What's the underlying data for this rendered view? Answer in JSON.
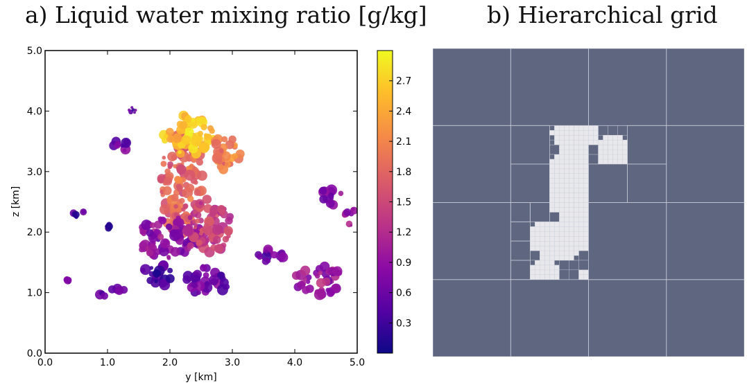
{
  "titles": {
    "left": "a) Liquid water mixing ratio [g/kg]",
    "right": "b) Hierarchical grid"
  },
  "chart_data": [
    {
      "type": "heatmap",
      "title": "a) Liquid water mixing ratio [g/kg]",
      "xlabel": "y [km]",
      "ylabel": "z [km]",
      "xlim": [
        0.0,
        5.0
      ],
      "ylim": [
        0.0,
        5.0
      ],
      "xticks": [
        "0.0",
        "1.0",
        "2.0",
        "3.0",
        "4.0",
        "5.0"
      ],
      "yticks": [
        "0.0",
        "1.0",
        "2.0",
        "3.0",
        "4.0",
        "5.0"
      ],
      "colorbar": {
        "ticks": [
          "0.3",
          "0.6",
          "0.9",
          "1.2",
          "1.5",
          "1.8",
          "2.1",
          "2.4",
          "2.7"
        ],
        "range": [
          0.0,
          3.0
        ],
        "colors": [
          "#0d0887",
          "#5402a3",
          "#8b0aa5",
          "#b93289",
          "#db5c68",
          "#f48849",
          "#febd2a",
          "#f0f921"
        ]
      },
      "background": "#ffffff",
      "cloud_regions": [
        {
          "y": 2.2,
          "z": 2.8,
          "ry": 0.35,
          "rz": 0.9,
          "value": 1.8
        },
        {
          "y": 2.3,
          "z": 3.6,
          "ry": 0.4,
          "rz": 0.35,
          "value": 2.6
        },
        {
          "y": 2.0,
          "z": 1.9,
          "ry": 0.55,
          "rz": 0.35,
          "value": 0.9
        },
        {
          "y": 2.6,
          "z": 2.1,
          "ry": 0.4,
          "rz": 0.45,
          "value": 1.4
        },
        {
          "y": 2.9,
          "z": 3.3,
          "ry": 0.25,
          "rz": 0.3,
          "value": 2.0
        },
        {
          "y": 1.2,
          "z": 3.4,
          "ry": 0.18,
          "rz": 0.12,
          "value": 0.6
        },
        {
          "y": 1.4,
          "z": 4.0,
          "ry": 0.06,
          "rz": 0.06,
          "value": 0.5
        },
        {
          "y": 1.8,
          "z": 1.3,
          "ry": 0.25,
          "rz": 0.2,
          "value": 0.4
        },
        {
          "y": 2.6,
          "z": 1.2,
          "ry": 0.35,
          "rz": 0.25,
          "value": 0.6
        },
        {
          "y": 1.1,
          "z": 1.0,
          "ry": 0.25,
          "rz": 0.08,
          "value": 0.5
        },
        {
          "y": 3.6,
          "z": 1.6,
          "ry": 0.25,
          "rz": 0.12,
          "value": 0.7
        },
        {
          "y": 4.4,
          "z": 1.2,
          "ry": 0.4,
          "rz": 0.25,
          "value": 1.0
        },
        {
          "y": 4.6,
          "z": 2.6,
          "ry": 0.2,
          "rz": 0.15,
          "value": 0.8
        },
        {
          "y": 4.9,
          "z": 2.3,
          "ry": 0.1,
          "rz": 0.2,
          "value": 1.0
        },
        {
          "y": 0.35,
          "z": 1.2,
          "ry": 0.06,
          "rz": 0.04,
          "value": 0.7
        },
        {
          "y": 0.55,
          "z": 2.3,
          "ry": 0.1,
          "rz": 0.06,
          "value": 0.4
        },
        {
          "y": 1.0,
          "z": 2.1,
          "ry": 0.05,
          "rz": 0.04,
          "value": 0.3
        }
      ]
    },
    {
      "type": "heatmap",
      "title": "b) Hierarchical grid",
      "background": "#5f6680",
      "refined_color": "#e8e8ec",
      "grid_line_color": "#c8ccd8"
    }
  ]
}
